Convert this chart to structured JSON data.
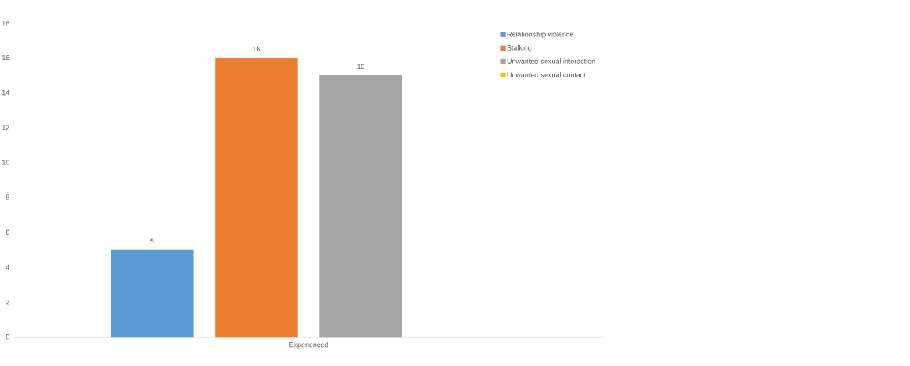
{
  "chart_data": {
    "type": "bar",
    "categories": [
      "Experienced"
    ],
    "series": [
      {
        "name": "Relationship violence",
        "color": "#5b9bd5",
        "values": [
          5
        ]
      },
      {
        "name": "Stalking",
        "color": "#ed7d31",
        "values": [
          16
        ]
      },
      {
        "name": "Unwanted sexual interaction",
        "color": "#a5a5a5",
        "values": [
          15
        ]
      },
      {
        "name": "Unwanted sexual contact",
        "color": "#ffc000",
        "values": [
          null
        ]
      }
    ],
    "ylim": [
      0,
      18
    ],
    "yticks": [
      0,
      2,
      4,
      6,
      8,
      10,
      12,
      14,
      16,
      18
    ],
    "data_labels": true,
    "legend": "top right",
    "grid": false
  }
}
